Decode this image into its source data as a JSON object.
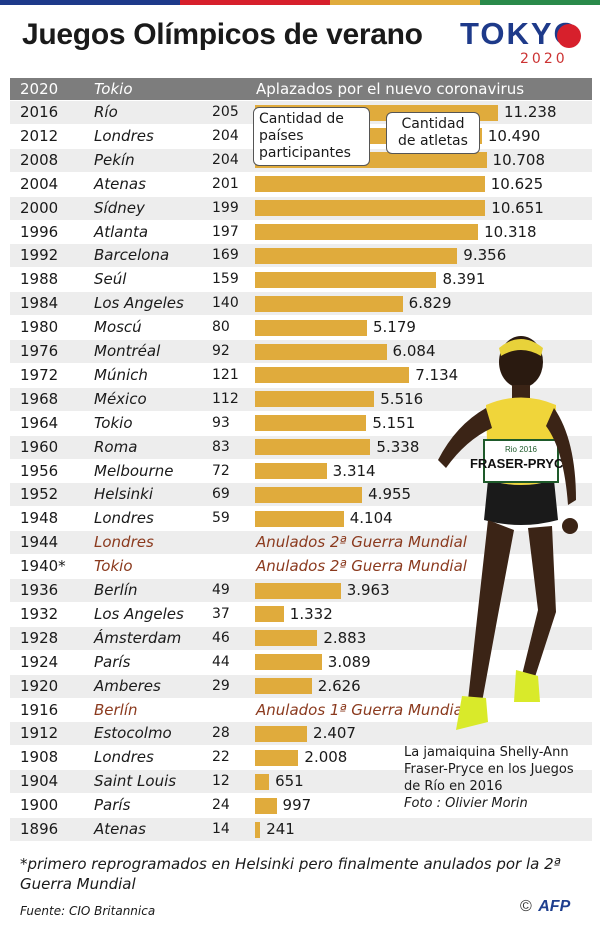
{
  "title": "Juegos Olímpicos de verano",
  "logo": {
    "word": "TOKYO",
    "year": "2020"
  },
  "colors": {
    "bar": "#e0ab3c",
    "header_bg": "#7d7d7d",
    "row_alt": "#ededed",
    "cancelled": "#8b3a1e",
    "accent_red": "#d7202c",
    "navy": "#1e3a8a"
  },
  "header": {
    "year": "2020",
    "city": "Tokio",
    "note": "Aplazados por el nuevo coronavirus"
  },
  "callouts": {
    "countries": "Cantidad de países participantes",
    "athletes": "Cantidad de atletas"
  },
  "chart_data": {
    "type": "bar",
    "title": "Juegos Olímpicos de verano",
    "orientation": "horizontal",
    "series": [
      {
        "name": "Cantidad de atletas",
        "values": [
          11238,
          10490,
          10708,
          10625,
          10651,
          10318,
          9356,
          8391,
          6829,
          5179,
          6084,
          7134,
          5516,
          5151,
          5338,
          3314,
          4955,
          4104,
          null,
          null,
          3963,
          1332,
          2883,
          3089,
          2626,
          null,
          2407,
          2008,
          651,
          997,
          241
        ]
      }
    ],
    "rows": [
      {
        "year": "2016",
        "city": "Río",
        "countries": "205",
        "athletes": 11238,
        "label": "11.238"
      },
      {
        "year": "2012",
        "city": "Londres",
        "countries": "204",
        "athletes": 10490,
        "label": "10.490"
      },
      {
        "year": "2008",
        "city": "Pekín",
        "countries": "204",
        "athletes": 10708,
        "label": "10.708"
      },
      {
        "year": "2004",
        "city": "Atenas",
        "countries": "201",
        "athletes": 10625,
        "label": "10.625"
      },
      {
        "year": "2000",
        "city": "Sídney",
        "countries": "199",
        "athletes": 10651,
        "label": "10.651"
      },
      {
        "year": "1996",
        "city": "Atlanta",
        "countries": "197",
        "athletes": 10318,
        "label": "10.318"
      },
      {
        "year": "1992",
        "city": "Barcelona",
        "countries": "169",
        "athletes": 9356,
        "label": "9.356"
      },
      {
        "year": "1988",
        "city": "Seúl",
        "countries": "159",
        "athletes": 8391,
        "label": "8.391"
      },
      {
        "year": "1984",
        "city": "Los Angeles",
        "countries": "140",
        "athletes": 6829,
        "label": "6.829"
      },
      {
        "year": "1980",
        "city": "Moscú",
        "countries": "80",
        "athletes": 5179,
        "label": "5.179"
      },
      {
        "year": "1976",
        "city": "Montréal",
        "countries": "92",
        "athletes": 6084,
        "label": "6.084"
      },
      {
        "year": "1972",
        "city": "Múnich",
        "countries": "121",
        "athletes": 7134,
        "label": "7.134"
      },
      {
        "year": "1968",
        "city": "México",
        "countries": "112",
        "athletes": 5516,
        "label": "5.516"
      },
      {
        "year": "1964",
        "city": "Tokio",
        "countries": "93",
        "athletes": 5151,
        "label": "5.151"
      },
      {
        "year": "1960",
        "city": "Roma",
        "countries": "83",
        "athletes": 5338,
        "label": "5.338"
      },
      {
        "year": "1956",
        "city": "Melbourne",
        "countries": "72",
        "athletes": 3314,
        "label": "3.314"
      },
      {
        "year": "1952",
        "city": "Helsinki",
        "countries": "69",
        "athletes": 4955,
        "label": "4.955"
      },
      {
        "year": "1948",
        "city": "Londres",
        "countries": "59",
        "athletes": 4104,
        "label": "4.104"
      },
      {
        "year": "1944",
        "city": "Londres",
        "cancelled": "Anulados 2ª Guerra Mundial"
      },
      {
        "year": "1940*",
        "city": "Tokio",
        "cancelled": "Anulados 2ª Guerra Mundial"
      },
      {
        "year": "1936",
        "city": "Berlín",
        "countries": "49",
        "athletes": 3963,
        "label": "3.963"
      },
      {
        "year": "1932",
        "city": "Los Angeles",
        "countries": "37",
        "athletes": 1332,
        "label": "1.332"
      },
      {
        "year": "1928",
        "city": "Ámsterdam",
        "countries": "46",
        "athletes": 2883,
        "label": "2.883"
      },
      {
        "year": "1924",
        "city": "París",
        "countries": "44",
        "athletes": 3089,
        "label": "3.089"
      },
      {
        "year": "1920",
        "city": "Amberes",
        "countries": "29",
        "athletes": 2626,
        "label": "2.626"
      },
      {
        "year": "1916",
        "city": "Berlín",
        "cancelled": "Anulados 1ª Guerra Mundial"
      },
      {
        "year": "1912",
        "city": "Estocolmo",
        "countries": "28",
        "athletes": 2407,
        "label": "2.407"
      },
      {
        "year": "1908",
        "city": "Londres",
        "countries": "22",
        "athletes": 2008,
        "label": "2.008"
      },
      {
        "year": "1904",
        "city": "Saint Louis",
        "countries": "12",
        "athletes": 651,
        "label": "651"
      },
      {
        "year": "1900",
        "city": "París",
        "countries": "24",
        "athletes": 997,
        "label": "997"
      },
      {
        "year": "1896",
        "city": "Atenas",
        "countries": "14",
        "athletes": 241,
        "label": "241"
      }
    ],
    "xlim": [
      0,
      11238
    ],
    "grid": false,
    "legend": "none"
  },
  "photo_caption": {
    "text": "La jamaiquina Shelly-Ann Fraser-Pryce en los Juegos de Río en 2016",
    "credit": "Foto : Olivier Morin",
    "bib": "FRASER-PRYCE",
    "bib_sub": "Rio 2016"
  },
  "footnote": "*primero reprogramados en Helsinki  pero finalmente anulados por la 2ª Guerra Mundial",
  "source": "Fuente: CIO Britannica",
  "agency": {
    "copyright": "©",
    "name": "AFP"
  }
}
